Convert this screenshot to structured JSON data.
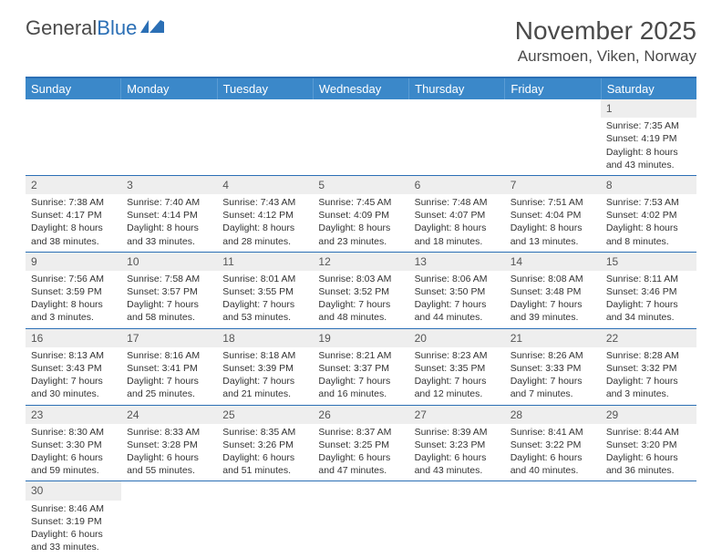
{
  "logo": {
    "text1": "General",
    "text2": "Blue"
  },
  "title": "November 2025",
  "location": "Aursmoen, Viken, Norway",
  "colors": {
    "header_bg": "#3b88c9",
    "border": "#2b6fb5",
    "daynum_bg": "#eeeeee",
    "text": "#333333"
  },
  "weekdays": [
    "Sunday",
    "Monday",
    "Tuesday",
    "Wednesday",
    "Thursday",
    "Friday",
    "Saturday"
  ],
  "weeks": [
    [
      null,
      null,
      null,
      null,
      null,
      null,
      {
        "n": "1",
        "sr": "7:35 AM",
        "ss": "4:19 PM",
        "dl": "8 hours and 43 minutes."
      }
    ],
    [
      {
        "n": "2",
        "sr": "7:38 AM",
        "ss": "4:17 PM",
        "dl": "8 hours and 38 minutes."
      },
      {
        "n": "3",
        "sr": "7:40 AM",
        "ss": "4:14 PM",
        "dl": "8 hours and 33 minutes."
      },
      {
        "n": "4",
        "sr": "7:43 AM",
        "ss": "4:12 PM",
        "dl": "8 hours and 28 minutes."
      },
      {
        "n": "5",
        "sr": "7:45 AM",
        "ss": "4:09 PM",
        "dl": "8 hours and 23 minutes."
      },
      {
        "n": "6",
        "sr": "7:48 AM",
        "ss": "4:07 PM",
        "dl": "8 hours and 18 minutes."
      },
      {
        "n": "7",
        "sr": "7:51 AM",
        "ss": "4:04 PM",
        "dl": "8 hours and 13 minutes."
      },
      {
        "n": "8",
        "sr": "7:53 AM",
        "ss": "4:02 PM",
        "dl": "8 hours and 8 minutes."
      }
    ],
    [
      {
        "n": "9",
        "sr": "7:56 AM",
        "ss": "3:59 PM",
        "dl": "8 hours and 3 minutes."
      },
      {
        "n": "10",
        "sr": "7:58 AM",
        "ss": "3:57 PM",
        "dl": "7 hours and 58 minutes."
      },
      {
        "n": "11",
        "sr": "8:01 AM",
        "ss": "3:55 PM",
        "dl": "7 hours and 53 minutes."
      },
      {
        "n": "12",
        "sr": "8:03 AM",
        "ss": "3:52 PM",
        "dl": "7 hours and 48 minutes."
      },
      {
        "n": "13",
        "sr": "8:06 AM",
        "ss": "3:50 PM",
        "dl": "7 hours and 44 minutes."
      },
      {
        "n": "14",
        "sr": "8:08 AM",
        "ss": "3:48 PM",
        "dl": "7 hours and 39 minutes."
      },
      {
        "n": "15",
        "sr": "8:11 AM",
        "ss": "3:46 PM",
        "dl": "7 hours and 34 minutes."
      }
    ],
    [
      {
        "n": "16",
        "sr": "8:13 AM",
        "ss": "3:43 PM",
        "dl": "7 hours and 30 minutes."
      },
      {
        "n": "17",
        "sr": "8:16 AM",
        "ss": "3:41 PM",
        "dl": "7 hours and 25 minutes."
      },
      {
        "n": "18",
        "sr": "8:18 AM",
        "ss": "3:39 PM",
        "dl": "7 hours and 21 minutes."
      },
      {
        "n": "19",
        "sr": "8:21 AM",
        "ss": "3:37 PM",
        "dl": "7 hours and 16 minutes."
      },
      {
        "n": "20",
        "sr": "8:23 AM",
        "ss": "3:35 PM",
        "dl": "7 hours and 12 minutes."
      },
      {
        "n": "21",
        "sr": "8:26 AM",
        "ss": "3:33 PM",
        "dl": "7 hours and 7 minutes."
      },
      {
        "n": "22",
        "sr": "8:28 AM",
        "ss": "3:32 PM",
        "dl": "7 hours and 3 minutes."
      }
    ],
    [
      {
        "n": "23",
        "sr": "8:30 AM",
        "ss": "3:30 PM",
        "dl": "6 hours and 59 minutes."
      },
      {
        "n": "24",
        "sr": "8:33 AM",
        "ss": "3:28 PM",
        "dl": "6 hours and 55 minutes."
      },
      {
        "n": "25",
        "sr": "8:35 AM",
        "ss": "3:26 PM",
        "dl": "6 hours and 51 minutes."
      },
      {
        "n": "26",
        "sr": "8:37 AM",
        "ss": "3:25 PM",
        "dl": "6 hours and 47 minutes."
      },
      {
        "n": "27",
        "sr": "8:39 AM",
        "ss": "3:23 PM",
        "dl": "6 hours and 43 minutes."
      },
      {
        "n": "28",
        "sr": "8:41 AM",
        "ss": "3:22 PM",
        "dl": "6 hours and 40 minutes."
      },
      {
        "n": "29",
        "sr": "8:44 AM",
        "ss": "3:20 PM",
        "dl": "6 hours and 36 minutes."
      }
    ],
    [
      {
        "n": "30",
        "sr": "8:46 AM",
        "ss": "3:19 PM",
        "dl": "6 hours and 33 minutes."
      },
      null,
      null,
      null,
      null,
      null,
      null
    ]
  ],
  "labels": {
    "sunrise": "Sunrise: ",
    "sunset": "Sunset: ",
    "daylight": "Daylight: "
  }
}
